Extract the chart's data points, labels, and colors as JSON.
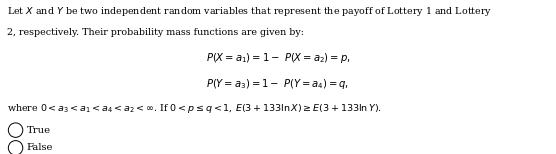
{
  "bg_color": "#ffffff",
  "text_color": "#000000",
  "figsize": [
    5.56,
    1.54
  ],
  "dpi": 100,
  "line1": "Let $X$ and $Y$ be two independent random variables that represent the payoff of Lottery 1 and Lottery",
  "line2": "2, respectively. Their probability mass functions are given by:",
  "eq1": "$P(X = a_1) = 1 -  P(X = a_2) = p,$",
  "eq2": "$P(Y = a_3) = 1 -  P(Y = a_4) = q,$",
  "line_where": "where $0 < a_3 < a_1 < a_4 < a_2 < \\infty$. If $0 < p \\leq q < 1$, $E(3 + 133\\ln X) \\geq E(3 + 133\\ln Y)$.",
  "opt_true": "True",
  "opt_false": "False",
  "font_size_body": 6.8,
  "font_size_eq": 7.2,
  "font_size_opts": 7.2
}
